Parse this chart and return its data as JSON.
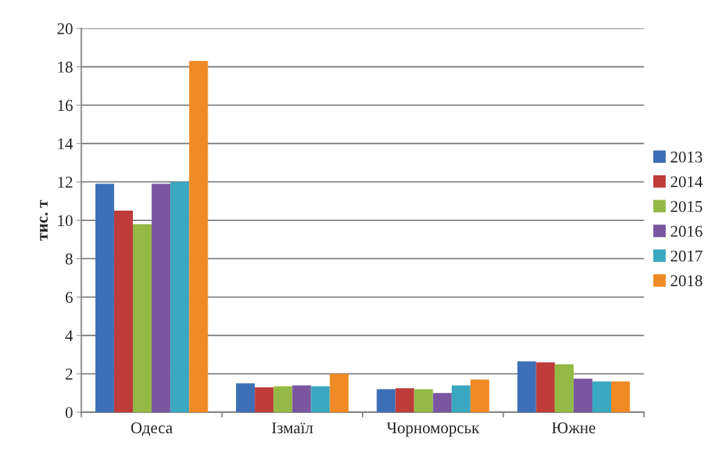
{
  "chart_data": {
    "type": "bar",
    "ylabel": "тис. т",
    "categories": [
      "Одеса",
      "Ізмаїл",
      "Чорноморськ",
      "Южне"
    ],
    "series": [
      {
        "name": "2013",
        "color": "#3d6fb6",
        "values": [
          11.9,
          1.5,
          1.2,
          2.65
        ]
      },
      {
        "name": "2014",
        "color": "#be3c3a",
        "values": [
          10.5,
          1.3,
          1.25,
          2.6
        ]
      },
      {
        "name": "2015",
        "color": "#94b944",
        "values": [
          9.8,
          1.35,
          1.2,
          2.5
        ]
      },
      {
        "name": "2016",
        "color": "#7a56a0",
        "values": [
          11.9,
          1.4,
          1.0,
          1.75
        ]
      },
      {
        "name": "2017",
        "color": "#3aa8c0",
        "values": [
          12.0,
          1.35,
          1.4,
          1.6
        ]
      },
      {
        "name": "2018",
        "color": "#f08a24",
        "values": [
          18.3,
          2.0,
          1.7,
          1.6
        ]
      }
    ],
    "ylim": [
      0,
      20
    ],
    "yticks": [
      0,
      2,
      4,
      6,
      8,
      10,
      12,
      14,
      16,
      18,
      20
    ],
    "grid": "y",
    "legend": "right"
  }
}
